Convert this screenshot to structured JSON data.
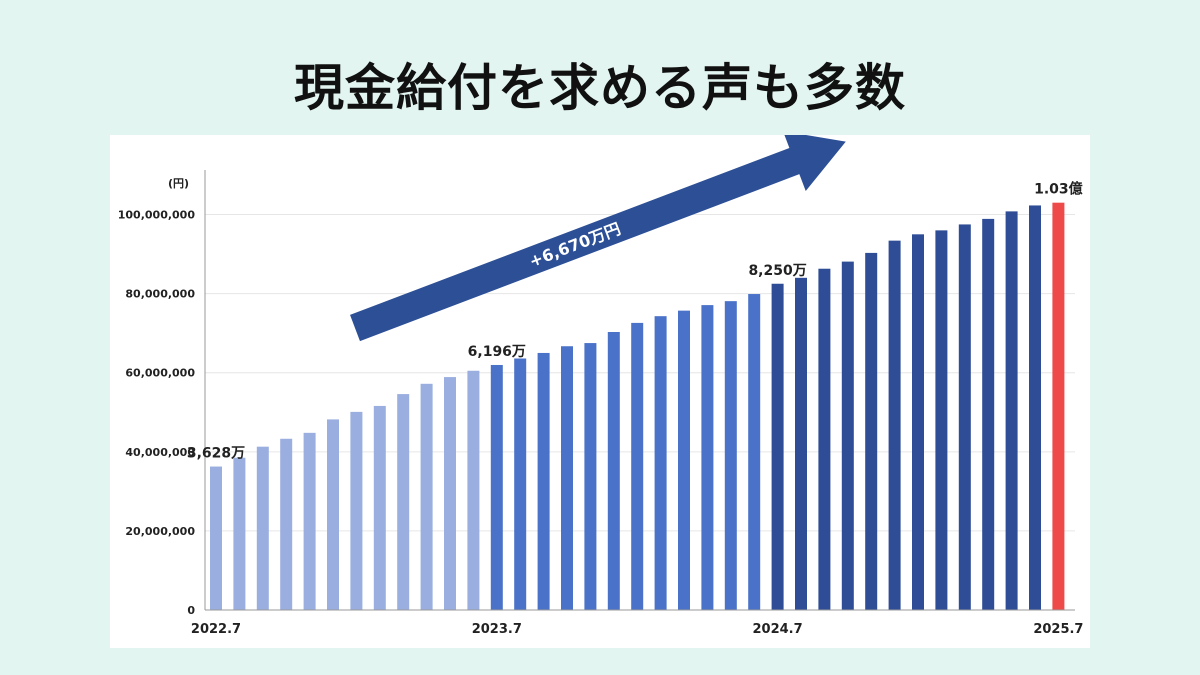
{
  "headline": "現金給付を求める声も多数",
  "chart_data": {
    "type": "bar",
    "unit_label": "(円)",
    "ylim": [
      0,
      110000000
    ],
    "yticks": [
      0,
      20000000,
      40000000,
      60000000,
      80000000,
      100000000
    ],
    "ytick_labels": [
      "0",
      "20,000,000",
      "40,000,000",
      "60,000,000",
      "80,000,000",
      "100,000,000"
    ],
    "x_labels": [
      {
        "index": 0,
        "label": "2022.7"
      },
      {
        "index": 12,
        "label": "2023.7"
      },
      {
        "index": 24,
        "label": "2024.7"
      },
      {
        "index": 36,
        "label": "2025.7"
      }
    ],
    "grid": true,
    "values": [
      36280000,
      38500000,
      41300000,
      43300000,
      44800000,
      48200000,
      50100000,
      51600000,
      54600000,
      57200000,
      58900000,
      60500000,
      61960000,
      63600000,
      65000000,
      66700000,
      67500000,
      70300000,
      72600000,
      74300000,
      75700000,
      77100000,
      78100000,
      79900000,
      82500000,
      84000000,
      86300000,
      88100000,
      90300000,
      93400000,
      95000000,
      96000000,
      97500000,
      98900000,
      100800000,
      102300000,
      103000000
    ],
    "bar_colors": [
      {
        "from": 0,
        "to": 11,
        "color": "#9aafe0"
      },
      {
        "from": 12,
        "to": 23,
        "color": "#4a72c8"
      },
      {
        "from": 24,
        "to": 35,
        "color": "#2e4d96"
      },
      {
        "from": 36,
        "to": 36,
        "color": "#ee4a4a"
      }
    ],
    "annotations": [
      {
        "index": 0,
        "text": "3,628万"
      },
      {
        "index": 12,
        "text": "6,196万"
      },
      {
        "index": 24,
        "text": "8,250万"
      },
      {
        "index": 36,
        "text": "1.03億",
        "color": "#ee4a4a"
      }
    ],
    "arrow_label": "+6,670万円",
    "arrow_color": "#2c4f96",
    "highlight_color": "#ee4a4a"
  }
}
